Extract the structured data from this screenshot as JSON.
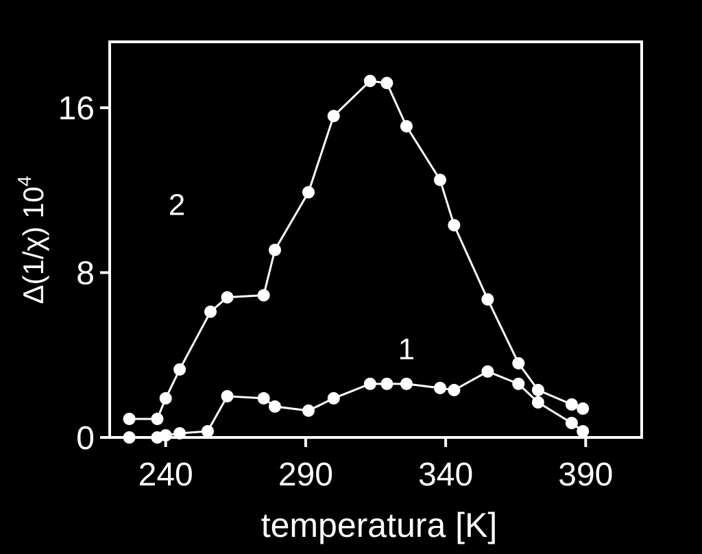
{
  "chart_data": {
    "type": "line",
    "xlabel": "temperatura [K]",
    "ylabel_main": "Δ(1/χ) 10",
    "ylabel_exp": "4",
    "xlim": [
      220,
      410
    ],
    "ylim": [
      0,
      19.2
    ],
    "xticks": [
      240,
      290,
      340,
      390
    ],
    "yticks": [
      0,
      8,
      16
    ],
    "xtick_labels": [
      "240",
      "290",
      "340",
      "390"
    ],
    "ytick_labels": [
      "0",
      "8",
      "16"
    ],
    "grid": false,
    "colors": {
      "background": "#000000",
      "foreground": "#ffffff"
    },
    "series": [
      {
        "name": "1",
        "label_at": [
          326,
          3.8
        ],
        "points": [
          [
            227,
            0.0
          ],
          [
            237,
            0.0
          ],
          [
            240,
            0.1
          ],
          [
            245,
            0.2
          ],
          [
            255,
            0.3
          ],
          [
            262,
            2.0
          ],
          [
            275,
            1.9
          ],
          [
            279,
            1.5
          ],
          [
            291,
            1.3
          ],
          [
            300,
            1.9
          ],
          [
            313,
            2.6
          ],
          [
            319,
            2.6
          ],
          [
            326,
            2.6
          ],
          [
            338,
            2.4
          ],
          [
            343,
            2.3
          ],
          [
            355,
            3.2
          ],
          [
            366,
            2.6
          ],
          [
            373,
            1.7
          ],
          [
            385,
            0.7
          ],
          [
            389,
            0.3
          ]
        ]
      },
      {
        "name": "2",
        "label_at": [
          244,
          10.8
        ],
        "points": [
          [
            227,
            0.9
          ],
          [
            237,
            0.9
          ],
          [
            240,
            1.9
          ],
          [
            245,
            3.3
          ],
          [
            256,
            6.1
          ],
          [
            262,
            6.8
          ],
          [
            275,
            6.9
          ],
          [
            279,
            9.1
          ],
          [
            291,
            11.9
          ],
          [
            300,
            15.6
          ],
          [
            313,
            17.3
          ],
          [
            319,
            17.2
          ],
          [
            326,
            15.1
          ],
          [
            338,
            12.5
          ],
          [
            343,
            10.3
          ],
          [
            355,
            6.7
          ],
          [
            366,
            3.6
          ],
          [
            373,
            2.3
          ],
          [
            385,
            1.6
          ],
          [
            389,
            1.4
          ]
        ]
      }
    ]
  }
}
